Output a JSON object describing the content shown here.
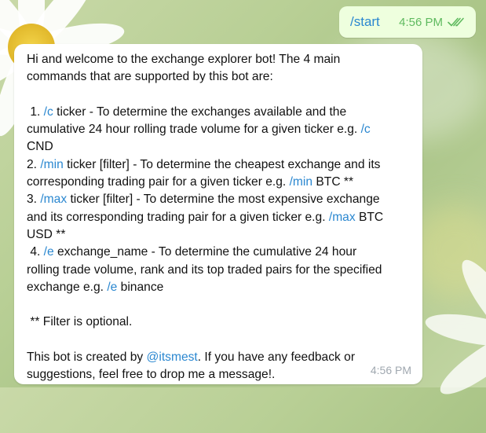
{
  "outgoing": {
    "text": "/start",
    "time": "4:56 PM",
    "status_icon": "double-check-icon"
  },
  "incoming": {
    "intro": [
      "Hi and welcome to the exchange explorer bot! The 4 main",
      "commands that are supported by this bot are:"
    ],
    "c1_prefix": " 1. ",
    "c1_cmd": "/c",
    "c1_line1_rest": " ticker - To determine the exchanges available and the",
    "c1_line2_pre": "cumulative 24 hour rolling trade volume for a given ticker e.g. ",
    "c1_line2_cmd": "/c",
    "c1_line3": "CND",
    "c2_prefix": "2. ",
    "c2_cmd": "/min",
    "c2_line1_rest": " ticker [filter] - To determine the cheapest exchange and its",
    "c2_line2_pre": "corresponding trading pair for a given ticker e.g. ",
    "c2_line2_cmd": "/min",
    "c2_line2_post": " BTC **",
    "c3_prefix": "3. ",
    "c3_cmd": "/max",
    "c3_line1_rest": " ticker [filter] - To determine the most expensive exchange",
    "c3_line2_pre": "and its corresponding trading pair for a given ticker e.g. ",
    "c3_line2_cmd": "/max",
    "c3_line2_post": " BTC",
    "c3_line3": "USD **",
    "c4_prefix": " 4. ",
    "c4_cmd": "/e",
    "c4_line1_rest": " exchange_name - To determine the cumulative 24 hour",
    "c4_line2": "rolling trade volume, rank and its top traded pairs for the specified",
    "c4_line3_pre": "exchange e.g. ",
    "c4_line3_cmd": "/e",
    "c4_line3_post": " binance",
    "filter_note": " ** Filter is optional.",
    "footer_pre": "This bot is created by ",
    "footer_mention": "@itsmest",
    "footer_post": ". If you have any feedback or",
    "footer_line2": "suggestions, feel free to drop me a message!.",
    "time": "4:56 PM"
  },
  "colors": {
    "link": "#2a87d0",
    "outgoing_bubble": "#eeffde",
    "outgoing_time": "#5fba5f",
    "incoming_time": "#a0a8b0"
  }
}
